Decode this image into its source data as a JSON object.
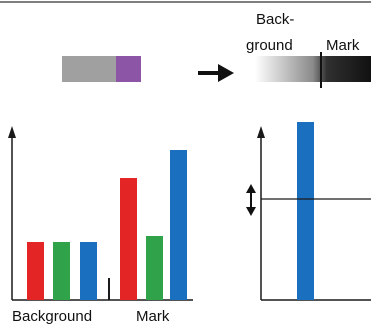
{
  "labels": {
    "background": "Background",
    "mark": "Mark",
    "gradient_background_line1": "Back-",
    "gradient_background_line2": "ground",
    "gradient_mark": "Mark"
  },
  "colors": {
    "swatch_gray": "#a0a0a0",
    "swatch_purple": "#8c55a6",
    "red": "#e42526",
    "green": "#30a34a",
    "blue": "#1a6fbf",
    "axis": "#1a1a1a"
  },
  "icons": {
    "transform_arrow": "arrow-right-icon",
    "difference_marker": "double-arrow-vertical-icon"
  }
}
